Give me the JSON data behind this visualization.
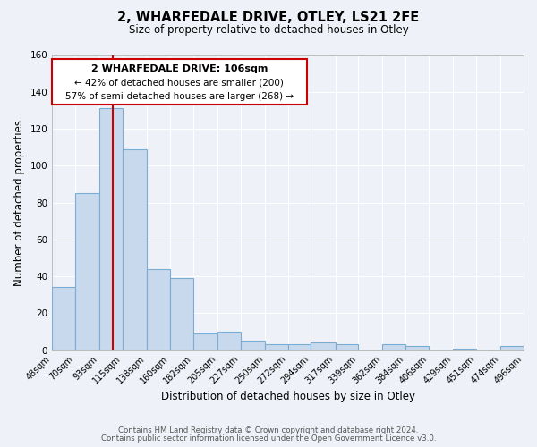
{
  "title": "2, WHARFEDALE DRIVE, OTLEY, LS21 2FE",
  "subtitle": "Size of property relative to detached houses in Otley",
  "xlabel": "Distribution of detached houses by size in Otley",
  "ylabel": "Number of detached properties",
  "bar_color": "#c8d9ee",
  "bar_edge_color": "#7aadd4",
  "background_color": "#eef2f8",
  "plot_bg_color": "#eef2f8",
  "grid_color": "#ffffff",
  "annotation_box_edge_color": "#cc0000",
  "vline_color": "#cc0000",
  "vline_x": 106,
  "bin_edges": [
    48,
    70,
    93,
    115,
    138,
    160,
    182,
    205,
    227,
    250,
    272,
    294,
    317,
    339,
    362,
    384,
    406,
    429,
    451,
    474,
    496
  ],
  "bin_labels": [
    "48sqm",
    "70sqm",
    "93sqm",
    "115sqm",
    "138sqm",
    "160sqm",
    "182sqm",
    "205sqm",
    "227sqm",
    "250sqm",
    "272sqm",
    "294sqm",
    "317sqm",
    "339sqm",
    "362sqm",
    "384sqm",
    "406sqm",
    "429sqm",
    "451sqm",
    "474sqm",
    "496sqm"
  ],
  "counts": [
    34,
    85,
    131,
    109,
    44,
    39,
    9,
    10,
    5,
    3,
    3,
    4,
    3,
    0,
    3,
    2,
    0,
    1,
    0,
    2
  ],
  "ylim": [
    0,
    160
  ],
  "yticks": [
    0,
    20,
    40,
    60,
    80,
    100,
    120,
    140,
    160
  ],
  "annotation_line1": "2 WHARFEDALE DRIVE: 106sqm",
  "annotation_line2": "← 42% of detached houses are smaller (200)",
  "annotation_line3": "57% of semi-detached houses are larger (268) →",
  "footer_line1": "Contains HM Land Registry data © Crown copyright and database right 2024.",
  "footer_line2": "Contains public sector information licensed under the Open Government Licence v3.0."
}
